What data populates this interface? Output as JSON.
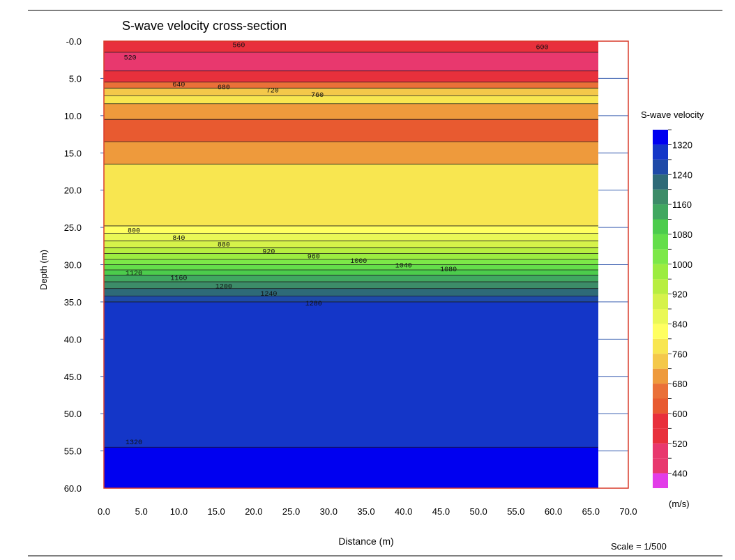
{
  "chart_data": {
    "type": "heatmap",
    "title": "S-wave velocity cross-section",
    "xlabel": "Distance (m)",
    "ylabel": "Depth (m)",
    "scale_text": "Scale = 1/500",
    "xlim": [
      0,
      70
    ],
    "ylim": [
      0,
      60
    ],
    "y_inverted": true,
    "data_x_extent": [
      0,
      66
    ],
    "x_ticks": [
      "0.0",
      "5.0",
      "10.0",
      "15.0",
      "20.0",
      "25.0",
      "30.0",
      "35.0",
      "40.0",
      "45.0",
      "50.0",
      "55.0",
      "60.0",
      "65.0",
      "70.0"
    ],
    "y_ticks": [
      "-0.0",
      "5.0",
      "10.0",
      "15.0",
      "20.0",
      "25.0",
      "30.0",
      "35.0",
      "40.0",
      "45.0",
      "50.0",
      "55.0",
      "60.0"
    ],
    "legend": {
      "title": "S-wave velocity",
      "unit": "(m/s)",
      "labels": [
        "1320",
        "1240",
        "1160",
        "1080",
        "1000",
        "920",
        "840",
        "760",
        "680",
        "600",
        "520",
        "440"
      ],
      "bins": [
        {
          "min": 400,
          "color": "#e23ce8"
        },
        {
          "min": 440,
          "color": "#e8386e"
        },
        {
          "min": 480,
          "color": "#e8386e"
        },
        {
          "min": 520,
          "color": "#e8303c"
        },
        {
          "min": 560,
          "color": "#e8303c"
        },
        {
          "min": 600,
          "color": "#e85a30"
        },
        {
          "min": 640,
          "color": "#ea7038"
        },
        {
          "min": 680,
          "color": "#ee9a3c"
        },
        {
          "min": 720,
          "color": "#f4c84a"
        },
        {
          "min": 760,
          "color": "#f8e650"
        },
        {
          "min": 800,
          "color": "#ffff60"
        },
        {
          "min": 840,
          "color": "#eaf856"
        },
        {
          "min": 880,
          "color": "#d6f24a"
        },
        {
          "min": 920,
          "color": "#b8ee40"
        },
        {
          "min": 960,
          "color": "#9cec40"
        },
        {
          "min": 1000,
          "color": "#7ce848"
        },
        {
          "min": 1040,
          "color": "#64de4a"
        },
        {
          "min": 1080,
          "color": "#4ccc4c"
        },
        {
          "min": 1120,
          "color": "#40a860"
        },
        {
          "min": 1160,
          "color": "#3c8c68"
        },
        {
          "min": 1200,
          "color": "#2e6a78"
        },
        {
          "min": 1240,
          "color": "#1e4aa8"
        },
        {
          "min": 1280,
          "color": "#1436c8"
        },
        {
          "min": 1320,
          "color": "#0000f0"
        }
      ]
    },
    "layers": [
      {
        "depth_top": 0,
        "depth_bottom": 1.5,
        "velocity": 560
      },
      {
        "depth_top": 1.5,
        "depth_bottom": 4.0,
        "velocity": 500
      },
      {
        "depth_top": 4.0,
        "depth_bottom": 5.5,
        "velocity": 580
      },
      {
        "depth_top": 5.5,
        "depth_bottom": 6.3,
        "velocity": 660
      },
      {
        "depth_top": 6.3,
        "depth_bottom": 7.3,
        "velocity": 730
      },
      {
        "depth_top": 7.3,
        "depth_bottom": 8.4,
        "velocity": 770
      },
      {
        "depth_top": 8.4,
        "depth_bottom": 10.5,
        "velocity": 700
      },
      {
        "depth_top": 10.5,
        "depth_bottom": 13.5,
        "velocity": 630
      },
      {
        "depth_top": 13.5,
        "depth_bottom": 16.5,
        "velocity": 690
      },
      {
        "depth_top": 16.5,
        "depth_bottom": 24.8,
        "velocity": 760
      },
      {
        "depth_top": 24.8,
        "depth_bottom": 25.8,
        "velocity": 800
      },
      {
        "depth_top": 25.8,
        "depth_bottom": 26.8,
        "velocity": 840
      },
      {
        "depth_top": 26.8,
        "depth_bottom": 27.7,
        "velocity": 880
      },
      {
        "depth_top": 27.7,
        "depth_bottom": 28.5,
        "velocity": 920
      },
      {
        "depth_top": 28.5,
        "depth_bottom": 29.3,
        "velocity": 960
      },
      {
        "depth_top": 29.3,
        "depth_bottom": 30.0,
        "velocity": 1000
      },
      {
        "depth_top": 30.0,
        "depth_bottom": 30.7,
        "velocity": 1040
      },
      {
        "depth_top": 30.7,
        "depth_bottom": 31.4,
        "velocity": 1080
      },
      {
        "depth_top": 31.4,
        "depth_bottom": 32.3,
        "velocity": 1120
      },
      {
        "depth_top": 32.3,
        "depth_bottom": 33.2,
        "velocity": 1160
      },
      {
        "depth_top": 33.2,
        "depth_bottom": 34.2,
        "velocity": 1200
      },
      {
        "depth_top": 34.2,
        "depth_bottom": 35.0,
        "velocity": 1240
      },
      {
        "depth_top": 35.0,
        "depth_bottom": 54.5,
        "velocity": 1280
      },
      {
        "depth_top": 54.5,
        "depth_bottom": 60.0,
        "velocity": 1320
      }
    ],
    "contour_labels": [
      {
        "text": "520",
        "x": 3.5,
        "depth": 2.2
      },
      {
        "text": "560",
        "x": 18,
        "depth": 0.5
      },
      {
        "text": "600",
        "x": 58.5,
        "depth": 0.8
      },
      {
        "text": "640",
        "x": 10,
        "depth": 5.8
      },
      {
        "text": "680",
        "x": 16,
        "depth": 6.2
      },
      {
        "text": "720",
        "x": 22.5,
        "depth": 6.6
      },
      {
        "text": "760",
        "x": 28.5,
        "depth": 7.2
      },
      {
        "text": "800",
        "x": 4,
        "depth": 25.4
      },
      {
        "text": "840",
        "x": 10,
        "depth": 26.4
      },
      {
        "text": "880",
        "x": 16,
        "depth": 27.3
      },
      {
        "text": "920",
        "x": 22,
        "depth": 28.2
      },
      {
        "text": "960",
        "x": 28,
        "depth": 28.9
      },
      {
        "text": "1000",
        "x": 34,
        "depth": 29.5
      },
      {
        "text": "1040",
        "x": 40,
        "depth": 30.1
      },
      {
        "text": "1080",
        "x": 46,
        "depth": 30.6
      },
      {
        "text": "1120",
        "x": 4,
        "depth": 31.1
      },
      {
        "text": "1160",
        "x": 10,
        "depth": 31.8
      },
      {
        "text": "1200",
        "x": 16,
        "depth": 32.9
      },
      {
        "text": "1240",
        "x": 22,
        "depth": 33.9
      },
      {
        "text": "1280",
        "x": 28,
        "depth": 35.2
      },
      {
        "text": "1320",
        "x": 4,
        "depth": 53.8
      }
    ]
  }
}
